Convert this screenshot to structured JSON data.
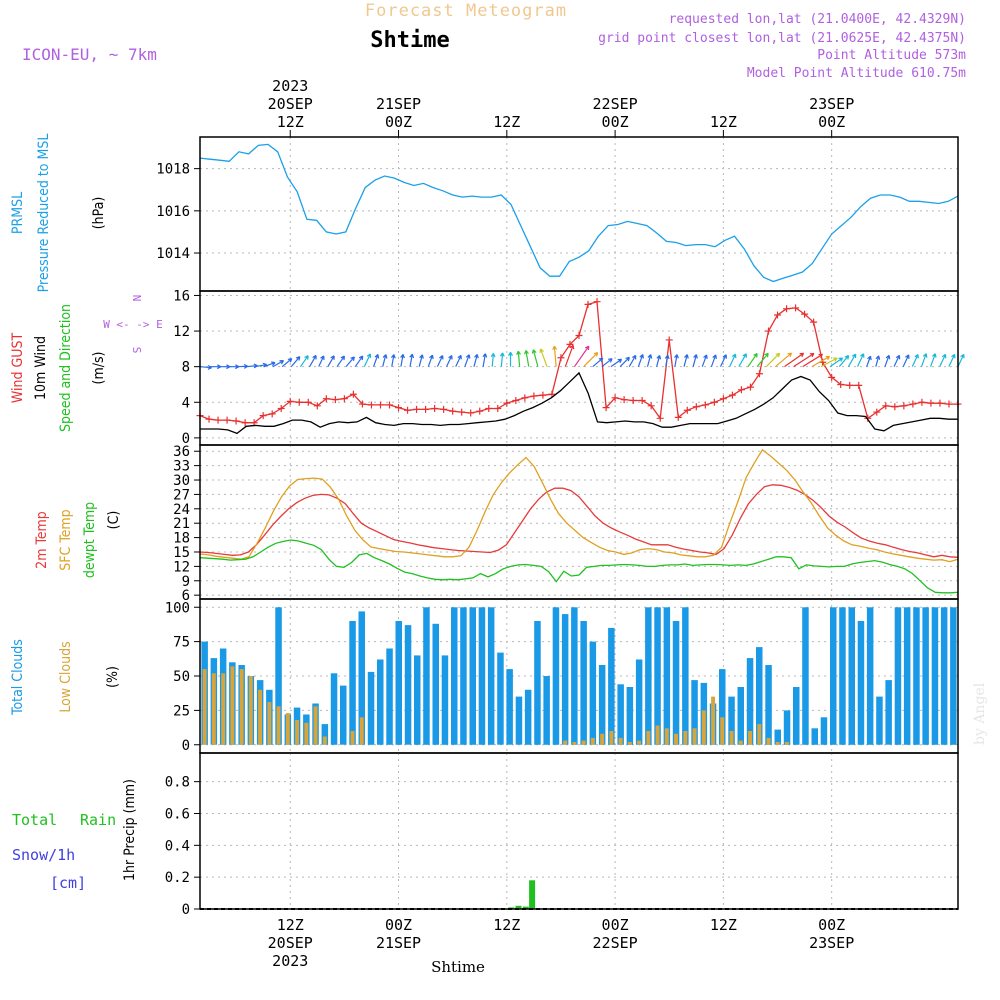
{
  "header": {
    "title": "Forecast Meteogram",
    "location": "Shtime",
    "model": "ICON-EU, ~ 7km",
    "requested": "requested lon,lat (21.0400E, 42.4329N)",
    "gridpoint": "grid point closest lon,lat (21.0625E, 42.4375N)",
    "altitude": "Point Altitude 573m",
    "model_altitude": "Model Point Altitude 610.75m",
    "bottom_location": "Shtime",
    "watermark": "by Angel"
  },
  "time_axis": {
    "top": [
      {
        "h": 12,
        "lines": [
          "2023",
          "20SEP",
          "12Z"
        ]
      },
      {
        "h": 24,
        "lines": [
          "21SEP",
          "00Z"
        ]
      },
      {
        "h": 36,
        "lines": [
          "12Z"
        ]
      },
      {
        "h": 48,
        "lines": [
          "22SEP",
          "00Z"
        ]
      },
      {
        "h": 60,
        "lines": [
          "12Z"
        ]
      },
      {
        "h": 72,
        "lines": [
          "23SEP",
          "00Z"
        ]
      }
    ],
    "bottom": [
      {
        "h": 12,
        "lines": [
          "12Z",
          "20SEP",
          "2023"
        ]
      },
      {
        "h": 24,
        "lines": [
          "00Z",
          "21SEP"
        ]
      },
      {
        "h": 36,
        "lines": [
          "12Z"
        ]
      },
      {
        "h": 48,
        "lines": [
          "00Z",
          "22SEP"
        ]
      },
      {
        "h": 60,
        "lines": [
          "12Z"
        ]
      },
      {
        "h": 72,
        "lines": [
          "00Z",
          "23SEP"
        ]
      }
    ]
  },
  "colors": {
    "pressure": "#1ba0e8",
    "gust": "#e83030",
    "wind": "#000000",
    "temp2m": "#e83a3a",
    "sfc": "#e0a020",
    "dewpt": "#20c020",
    "total_cloud": "#1a9ae6",
    "low_cloud": "#d9a53a",
    "rain": "#20c020",
    "snow": "#4040e0",
    "legend_purple": "#b060e0"
  },
  "chart_data": [
    {
      "type": "line",
      "panel": "pressure",
      "ylabels": [
        "PRMSL",
        "Pressure Reduced to MSL",
        "(hPa)"
      ],
      "yticks": [
        1014,
        1016,
        1018
      ],
      "ylim": [
        1012.2,
        1019.5
      ],
      "series": [
        {
          "name": "PRMSL",
          "values": [
            1018.5,
            1018.45,
            1018.4,
            1018.35,
            1018.8,
            1018.7,
            1019.1,
            1019.15,
            1018.8,
            1017.6,
            1016.9,
            1015.6,
            1015.55,
            1015.0,
            1014.9,
            1015.0,
            1016.1,
            1017.1,
            1017.45,
            1017.65,
            1017.55,
            1017.35,
            1017.2,
            1017.3,
            1017.1,
            1016.95,
            1016.75,
            1016.65,
            1016.7,
            1016.65,
            1016.65,
            1016.75,
            1016.3,
            1015.3,
            1014.3,
            1013.3,
            1012.9,
            1012.9,
            1013.6,
            1013.8,
            1014.1,
            1014.8,
            1015.3,
            1015.35,
            1015.5,
            1015.4,
            1015.3,
            1014.95,
            1014.55,
            1014.5,
            1014.35,
            1014.4,
            1014.4,
            1014.3,
            1014.6,
            1014.8,
            1014.2,
            1013.4,
            1012.85,
            1012.65,
            1012.8,
            1012.95,
            1013.1,
            1013.5,
            1014.2,
            1014.9,
            1015.3,
            1015.7,
            1016.2,
            1016.6,
            1016.75,
            1016.75,
            1016.65,
            1016.45,
            1016.45,
            1016.4,
            1016.35,
            1016.45,
            1016.7
          ]
        }
      ]
    },
    {
      "type": "line",
      "panel": "wind",
      "ylabels": [
        "Wind GUST",
        "10m Wind",
        "Speed and Direction",
        "(m/s)"
      ],
      "direction_legend": [
        "N",
        "W <- -> E",
        "S"
      ],
      "yticks": [
        0,
        4,
        8,
        12,
        16
      ],
      "ylim": [
        -0.8,
        16.5
      ],
      "series": [
        {
          "name": "Wind GUST",
          "values": [
            2.5,
            2.1,
            2.0,
            2.0,
            1.9,
            1.7,
            1.7,
            2.5,
            2.7,
            3.3,
            4.1,
            4.0,
            4.0,
            3.6,
            4.4,
            4.3,
            4.4,
            4.9,
            3.8,
            3.7,
            3.7,
            3.7,
            3.4,
            3.1,
            3.2,
            3.2,
            3.3,
            3.2,
            3.0,
            2.9,
            2.8,
            3.0,
            3.3,
            3.3,
            3.9,
            4.2,
            4.5,
            4.7,
            4.8,
            4.9,
            9.0,
            10.5,
            11.5,
            15.0,
            15.3,
            3.4,
            4.5,
            4.3,
            4.2,
            4.2,
            3.6,
            2.2,
            11.0,
            2.3,
            3.1,
            3.5,
            3.7,
            4.0,
            4.4,
            4.8,
            5.4,
            5.7,
            7.2,
            12.0,
            13.8,
            14.5,
            14.6,
            13.9,
            13.0,
            8.5,
            6.8,
            6.0,
            5.9,
            5.9,
            2.2,
            2.9,
            3.6,
            3.5,
            3.6,
            3.8,
            4.0,
            3.9,
            3.9,
            3.8,
            3.8
          ]
        },
        {
          "name": "10m Wind",
          "values": [
            1.0,
            1.0,
            1.0,
            0.9,
            0.5,
            1.3,
            1.4,
            1.3,
            1.3,
            1.6,
            2.0,
            2.0,
            1.8,
            1.2,
            1.6,
            1.8,
            1.7,
            1.8,
            2.3,
            1.7,
            1.5,
            1.4,
            1.6,
            1.6,
            1.5,
            1.5,
            1.4,
            1.5,
            1.5,
            1.6,
            1.7,
            1.8,
            1.9,
            2.1,
            2.5,
            3.0,
            3.4,
            3.9,
            4.5,
            5.3,
            6.3,
            7.3,
            5.0,
            1.8,
            1.7,
            1.8,
            1.9,
            1.8,
            1.8,
            1.6,
            1.2,
            1.2,
            1.4,
            1.6,
            1.6,
            1.6,
            1.6,
            1.9,
            2.2,
            2.7,
            3.2,
            3.8,
            4.5,
            5.5,
            6.5,
            6.9,
            6.5,
            5.2,
            4.2,
            2.8,
            2.5,
            2.5,
            2.4,
            1.0,
            0.8,
            1.4,
            1.6,
            1.8,
            2.0,
            2.2,
            2.2,
            2.1,
            2.1
          ]
        },
        {
          "name": "Speed and Direction",
          "values": [
            1.2,
            1.2,
            1.2,
            1.1,
            1.0,
            1.3,
            1.4,
            1.3,
            1.4,
            1.6,
            1.9,
            2.0,
            1.8,
            1.3,
            1.6,
            1.8,
            1.7,
            1.8,
            2.3,
            1.8,
            1.6,
            1.5,
            1.6,
            1.7,
            1.5,
            1.5,
            1.5,
            1.5,
            1.6,
            1.7,
            1.7,
            1.9,
            2.0,
            2.2,
            2.5,
            3.0,
            3.4,
            3.9,
            4.5,
            5.3,
            6.3,
            7.3,
            5.0,
            1.9,
            1.8,
            1.8,
            1.9,
            1.8,
            1.8,
            1.6,
            1.2,
            1.2,
            1.5,
            1.6,
            1.6,
            1.6,
            1.6,
            1.9,
            2.2,
            2.7,
            3.2,
            3.8,
            4.5,
            5.5,
            6.5,
            6.9,
            6.5,
            5.2,
            4.2,
            2.8,
            2.5,
            2.5,
            2.4,
            1.0,
            1.0,
            1.4,
            1.6,
            1.8,
            2.0,
            2.2,
            2.2,
            2.1,
            2.1
          ]
        }
      ],
      "directions_deg": [
        275,
        270,
        270,
        270,
        268,
        265,
        260,
        250,
        240,
        230,
        220,
        215,
        210,
        205,
        210,
        215,
        220,
        215,
        205,
        200,
        195,
        190,
        190,
        190,
        195,
        200,
        205,
        205,
        205,
        200,
        195,
        190,
        185,
        185,
        180,
        175,
        170,
        165,
        160,
        175,
        200,
        215,
        225,
        230,
        232,
        235,
        225,
        210,
        200,
        195,
        195,
        190,
        190,
        195,
        195,
        200,
        200,
        205,
        205,
        210,
        215,
        220,
        225,
        230,
        235,
        237,
        238,
        240,
        242,
        235,
        220,
        210,
        205,
        200,
        195,
        200,
        205,
        205,
        205,
        200,
        200,
        205,
        205,
        205
      ]
    },
    {
      "type": "line",
      "panel": "temperature",
      "ylabels": [
        "2m Temp",
        "SFC Temp",
        "dewpt Temp",
        "(C)"
      ],
      "yticks": [
        6,
        9,
        12,
        15,
        18,
        21,
        24,
        27,
        30,
        33,
        36
      ],
      "ylim": [
        5.2,
        37.3
      ],
      "series": [
        {
          "name": "2m Temp",
          "values": [
            15.0,
            14.9,
            14.7,
            14.5,
            14.3,
            14.4,
            15.0,
            16.5,
            18.5,
            20.6,
            22.4,
            24.0,
            25.3,
            26.2,
            26.8,
            27.0,
            26.9,
            26.2,
            25.1,
            23.0,
            21.0,
            20.0,
            19.2,
            18.4,
            17.6,
            17.2,
            16.9,
            16.5,
            16.2,
            15.9,
            15.7,
            15.5,
            15.3,
            15.2,
            15.1,
            15.0,
            14.9,
            15.4,
            16.5,
            19.0,
            21.5,
            24.0,
            26.0,
            27.5,
            28.3,
            28.3,
            27.8,
            26.5,
            24.5,
            22.5,
            21.0,
            20.0,
            19.2,
            18.5,
            17.7,
            17.1,
            16.5,
            16.5,
            16.5,
            16.0,
            15.6,
            15.3,
            15.0,
            14.8,
            14.5,
            15.7,
            18.5,
            22.0,
            25.0,
            27.0,
            28.6,
            29.0,
            28.9,
            28.5,
            27.9,
            27.0,
            25.8,
            24.3,
            22.5,
            21.2,
            20.2,
            19.0,
            17.9,
            17.3,
            16.8,
            16.5,
            16.0,
            15.5,
            15.1,
            14.8,
            14.4,
            14.0,
            14.3,
            14.0,
            13.9
          ]
        },
        {
          "name": "SFC Temp",
          "values": [
            14.6,
            14.4,
            14.1,
            13.9,
            13.7,
            13.5,
            14.0,
            16.8,
            20.0,
            23.5,
            26.5,
            28.8,
            30.1,
            30.3,
            30.4,
            30.2,
            28.5,
            26.0,
            22.5,
            19.5,
            17.5,
            16.0,
            15.7,
            15.4,
            15.1,
            15.0,
            14.8,
            14.6,
            14.4,
            14.2,
            14.0,
            14.0,
            14.2,
            16.0,
            19.5,
            23.5,
            27.0,
            29.5,
            31.5,
            33.2,
            34.7,
            32.8,
            29.5,
            26.0,
            23.0,
            21.0,
            19.5,
            18.0,
            17.0,
            16.0,
            15.3,
            15.0,
            14.5,
            14.8,
            15.5,
            15.7,
            15.5,
            15.0,
            14.8,
            14.4,
            14.2,
            14.0,
            14.0,
            14.3,
            16.0,
            21.0,
            25.5,
            30.5,
            33.5,
            36.3,
            35.0,
            33.5,
            32.0,
            30.0,
            27.5,
            25.2,
            22.5,
            20.0,
            18.5,
            17.3,
            16.5,
            16.2,
            15.8,
            15.5,
            15.0,
            14.6,
            14.3,
            14.0,
            13.7,
            13.5,
            13.3,
            13.4,
            13.0,
            13.5
          ]
        },
        {
          "name": "dewpt Temp",
          "values": [
            13.8,
            13.7,
            13.6,
            13.5,
            13.3,
            13.4,
            13.5,
            14.0,
            15.0,
            16.0,
            16.8,
            17.2,
            17.5,
            17.3,
            16.8,
            16.4,
            15.5,
            13.5,
            12.0,
            11.8,
            12.8,
            14.4,
            14.7,
            13.8,
            13.2,
            12.5,
            11.6,
            10.8,
            10.5,
            10.0,
            9.6,
            9.3,
            9.2,
            9.3,
            9.2,
            9.4,
            9.6,
            10.5,
            9.8,
            10.5,
            11.5,
            12.0,
            12.3,
            12.4,
            12.2,
            12.0,
            10.9,
            8.8,
            11.0,
            10.0,
            10.2,
            11.8,
            12.0,
            12.2,
            12.2,
            12.3,
            12.4,
            12.3,
            12.2,
            12.0,
            12.0,
            12.2,
            12.3,
            12.3,
            12.5,
            12.2,
            12.3,
            12.4,
            12.4,
            12.3,
            12.2,
            12.3,
            12.2,
            12.5,
            13.0,
            13.5,
            14.0,
            14.0,
            13.8,
            11.5,
            12.3,
            12.1,
            12.0,
            11.9,
            12.0,
            12.0,
            12.5,
            12.8,
            13.0,
            13.2,
            12.9,
            12.4,
            12.0,
            11.5,
            10.5,
            9.0,
            7.5,
            6.6,
            6.5,
            6.5,
            6.6
          ]
        }
      ]
    },
    {
      "type": "bar",
      "panel": "clouds",
      "ylabels": [
        "Total Clouds",
        "Low Clouds",
        "(%)"
      ],
      "yticks": [
        0,
        25,
        50,
        75,
        100
      ],
      "ylim": [
        -6,
        106
      ],
      "series": [
        {
          "name": "Total Clouds",
          "values": [
            75,
            63,
            70,
            60,
            58,
            50,
            47,
            40,
            100,
            22,
            27,
            22,
            30,
            15,
            52,
            43,
            90,
            97,
            53,
            62,
            70,
            90,
            87,
            65,
            100,
            88,
            65,
            100,
            100,
            100,
            100,
            100,
            67,
            55,
            35,
            40,
            90,
            50,
            100,
            95,
            100,
            90,
            75,
            58,
            85,
            44,
            42,
            62,
            100,
            100,
            100,
            90,
            100,
            47,
            45,
            30,
            55,
            35,
            42,
            63,
            71,
            58,
            11,
            25,
            42,
            100,
            12,
            20,
            100,
            100,
            100,
            90,
            100,
            35,
            47,
            100,
            100,
            100,
            100,
            100,
            100,
            100
          ]
        },
        {
          "name": "Low Clouds",
          "values": [
            55,
            52,
            52,
            57,
            55,
            50,
            40,
            31,
            28,
            23,
            18,
            16,
            28,
            6,
            0,
            0,
            10,
            20,
            0,
            0,
            0,
            0,
            0,
            0,
            0,
            0,
            0,
            0,
            0,
            0,
            0,
            0,
            0,
            0,
            0,
            0,
            0,
            0,
            0,
            3,
            2,
            3,
            5,
            8,
            10,
            5,
            2,
            3,
            10,
            14,
            12,
            8,
            10,
            12,
            25,
            35,
            20,
            10,
            3,
            10,
            15,
            5,
            2,
            2,
            0,
            0,
            0,
            0,
            0,
            0,
            0,
            0,
            0,
            0,
            0,
            0,
            0,
            0,
            0,
            0,
            0,
            0
          ]
        }
      ]
    },
    {
      "type": "bar",
      "panel": "precip",
      "ylabels": [
        "1hr Precip (mm)"
      ],
      "legend": [
        "Total",
        "Rain",
        "Snow/1h",
        "[cm]"
      ],
      "yticks": [
        0,
        0.2,
        0.4,
        0.6,
        0.8
      ],
      "ylim": [
        0,
        0.98
      ],
      "series": [
        {
          "name": "Total Rain",
          "points": [
            {
              "h": 36.5,
              "v": 0.01
            },
            {
              "h": 37.3,
              "v": 0.02
            },
            {
              "h": 38.1,
              "v": 0.015
            },
            {
              "h": 38.8,
              "v": 0.18
            },
            {
              "h": 48.3,
              "v": 0.005
            }
          ]
        }
      ]
    }
  ]
}
